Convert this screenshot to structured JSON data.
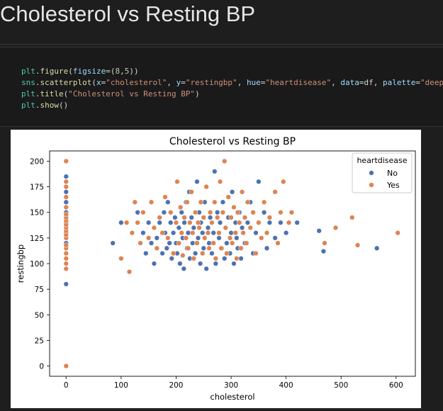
{
  "notebook": {
    "heading": "Cholesterol vs Resting BP",
    "code_lines": [
      [
        {
          "c": "t-mod",
          "t": "plt"
        },
        {
          "c": "t-p",
          "t": "."
        },
        {
          "c": "t-fn",
          "t": "figure"
        },
        {
          "c": "t-p",
          "t": "("
        },
        {
          "c": "t-arg",
          "t": "figsize"
        },
        {
          "c": "t-p",
          "t": "=("
        },
        {
          "c": "t-num",
          "t": "8"
        },
        {
          "c": "t-p",
          "t": ","
        },
        {
          "c": "t-num",
          "t": "5"
        },
        {
          "c": "t-p",
          "t": "))"
        }
      ],
      [
        {
          "c": "t-mod",
          "t": "sns"
        },
        {
          "c": "t-p",
          "t": "."
        },
        {
          "c": "t-fn",
          "t": "scatterplot"
        },
        {
          "c": "t-p",
          "t": "("
        },
        {
          "c": "t-arg",
          "t": "x"
        },
        {
          "c": "t-p",
          "t": "="
        },
        {
          "c": "t-str",
          "t": "\"cholesterol\""
        },
        {
          "c": "t-p",
          "t": ", "
        },
        {
          "c": "t-arg",
          "t": "y"
        },
        {
          "c": "t-p",
          "t": "="
        },
        {
          "c": "t-str",
          "t": "\"restingbp\""
        },
        {
          "c": "t-p",
          "t": ", "
        },
        {
          "c": "t-arg",
          "t": "hue"
        },
        {
          "c": "t-p",
          "t": "="
        },
        {
          "c": "t-str",
          "t": "\"heartdisease\""
        },
        {
          "c": "t-p",
          "t": ", "
        },
        {
          "c": "t-arg",
          "t": "data"
        },
        {
          "c": "t-p",
          "t": "=df, "
        },
        {
          "c": "t-arg",
          "t": "palette"
        },
        {
          "c": "t-p",
          "t": "="
        },
        {
          "c": "t-str",
          "t": "\"deep\""
        },
        {
          "c": "t-p",
          "t": ")"
        }
      ],
      [
        {
          "c": "t-mod",
          "t": "plt"
        },
        {
          "c": "t-p",
          "t": "."
        },
        {
          "c": "t-fn",
          "t": "title"
        },
        {
          "c": "t-p",
          "t": "("
        },
        {
          "c": "t-str",
          "t": "\"Cholesterol vs Resting BP\""
        },
        {
          "c": "t-p",
          "t": ")"
        }
      ],
      [
        {
          "c": "t-mod",
          "t": "plt"
        },
        {
          "c": "t-p",
          "t": "."
        },
        {
          "c": "t-fn",
          "t": "show"
        },
        {
          "c": "t-p",
          "t": "()"
        }
      ]
    ]
  },
  "chart_data": {
    "type": "scatter",
    "title": "Cholesterol vs Resting BP",
    "xlabel": "cholesterol",
    "ylabel": "restingbp",
    "xlim": [
      -30,
      635
    ],
    "ylim": [
      -10,
      210
    ],
    "xticks": [
      0,
      100,
      200,
      300,
      400,
      500,
      600
    ],
    "yticks": [
      0,
      25,
      50,
      75,
      100,
      125,
      150,
      175,
      200
    ],
    "grid": false,
    "legend": {
      "title": "heartdisease",
      "placement": "top-right"
    },
    "series": [
      {
        "name": "No",
        "color": "#4c72b0",
        "points": [
          [
            0,
            80
          ],
          [
            0,
            120
          ],
          [
            0,
            130
          ],
          [
            0,
            140
          ],
          [
            0,
            150
          ],
          [
            0,
            160
          ],
          [
            0,
            170
          ],
          [
            0,
            185
          ],
          [
            85,
            120
          ],
          [
            100,
            140
          ],
          [
            130,
            150
          ],
          [
            140,
            130
          ],
          [
            145,
            110
          ],
          [
            150,
            140
          ],
          [
            155,
            120
          ],
          [
            160,
            100
          ],
          [
            165,
            125
          ],
          [
            170,
            140
          ],
          [
            175,
            110
          ],
          [
            178,
            150
          ],
          [
            180,
            130
          ],
          [
            183,
            115
          ],
          [
            185,
            160
          ],
          [
            188,
            120
          ],
          [
            190,
            140
          ],
          [
            192,
            105
          ],
          [
            195,
            130
          ],
          [
            198,
            145
          ],
          [
            200,
            120
          ],
          [
            202,
            110
          ],
          [
            205,
            135
          ],
          [
            207,
            100
          ],
          [
            210,
            150
          ],
          [
            212,
            125
          ],
          [
            214,
            95
          ],
          [
            215,
            140
          ],
          [
            218,
            160
          ],
          [
            220,
            115
          ],
          [
            222,
            130
          ],
          [
            224,
            170
          ],
          [
            225,
            105
          ],
          [
            228,
            145
          ],
          [
            230,
            120
          ],
          [
            232,
            135
          ],
          [
            235,
            110
          ],
          [
            238,
            180
          ],
          [
            240,
            125
          ],
          [
            242,
            150
          ],
          [
            244,
            100
          ],
          [
            245,
            140
          ],
          [
            248,
            130
          ],
          [
            250,
            115
          ],
          [
            252,
            160
          ],
          [
            255,
            95
          ],
          [
            258,
            135
          ],
          [
            260,
            120
          ],
          [
            262,
            145
          ],
          [
            265,
            110
          ],
          [
            268,
            130
          ],
          [
            270,
            190
          ],
          [
            272,
            100
          ],
          [
            275,
            150
          ],
          [
            278,
            125
          ],
          [
            280,
            140
          ],
          [
            283,
            115
          ],
          [
            285,
            160
          ],
          [
            288,
            105
          ],
          [
            290,
            135
          ],
          [
            292,
            120
          ],
          [
            295,
            145
          ],
          [
            298,
            110
          ],
          [
            300,
            130
          ],
          [
            302,
            170
          ],
          [
            305,
            100
          ],
          [
            308,
            140
          ],
          [
            310,
            125
          ],
          [
            312,
            115
          ],
          [
            315,
            150
          ],
          [
            318,
            105
          ],
          [
            320,
            135
          ],
          [
            325,
            120
          ],
          [
            330,
            140
          ],
          [
            335,
            160
          ],
          [
            340,
            110
          ],
          [
            345,
            130
          ],
          [
            350,
            180
          ],
          [
            355,
            125
          ],
          [
            360,
            150
          ],
          [
            365,
            115
          ],
          [
            370,
            140
          ],
          [
            380,
            125
          ],
          [
            390,
            140
          ],
          [
            400,
            130
          ],
          [
            410,
            150
          ],
          [
            420,
            140
          ],
          [
            460,
            132
          ],
          [
            468,
            112
          ],
          [
            565,
            115
          ]
        ]
      },
      {
        "name": "Yes",
        "color": "#dd8452",
        "points": [
          [
            0,
            0
          ],
          [
            0,
            95
          ],
          [
            0,
            100
          ],
          [
            0,
            105
          ],
          [
            0,
            110
          ],
          [
            0,
            115
          ],
          [
            0,
            118
          ],
          [
            0,
            125
          ],
          [
            0,
            128
          ],
          [
            0,
            132
          ],
          [
            0,
            135
          ],
          [
            0,
            138
          ],
          [
            0,
            142
          ],
          [
            0,
            145
          ],
          [
            0,
            148
          ],
          [
            0,
            155
          ],
          [
            0,
            165
          ],
          [
            0,
            175
          ],
          [
            0,
            180
          ],
          [
            0,
            200
          ],
          [
            100,
            105
          ],
          [
            110,
            140
          ],
          [
            115,
            92
          ],
          [
            120,
            130
          ],
          [
            125,
            160
          ],
          [
            130,
            140
          ],
          [
            135,
            120
          ],
          [
            140,
            150
          ],
          [
            150,
            125
          ],
          [
            155,
            160
          ],
          [
            160,
            135
          ],
          [
            165,
            115
          ],
          [
            170,
            145
          ],
          [
            175,
            130
          ],
          [
            180,
            165
          ],
          [
            185,
            125
          ],
          [
            190,
            150
          ],
          [
            195,
            110
          ],
          [
            200,
            140
          ],
          [
            202,
            180
          ],
          [
            205,
            120
          ],
          [
            208,
            155
          ],
          [
            210,
            130
          ],
          [
            212,
            108
          ],
          [
            215,
            145
          ],
          [
            218,
            125
          ],
          [
            220,
            160
          ],
          [
            222,
            115
          ],
          [
            225,
            140
          ],
          [
            228,
            170
          ],
          [
            230,
            130
          ],
          [
            232,
            105
          ],
          [
            235,
            150
          ],
          [
            238,
            120
          ],
          [
            240,
            140
          ],
          [
            242,
            135
          ],
          [
            245,
            160
          ],
          [
            248,
            110
          ],
          [
            250,
            145
          ],
          [
            252,
            125
          ],
          [
            255,
            175
          ],
          [
            258,
            130
          ],
          [
            260,
            115
          ],
          [
            262,
            150
          ],
          [
            265,
            140
          ],
          [
            268,
            120
          ],
          [
            270,
            160
          ],
          [
            272,
            105
          ],
          [
            275,
            145
          ],
          [
            278,
            130
          ],
          [
            280,
            180
          ],
          [
            282,
            115
          ],
          [
            285,
            150
          ],
          [
            288,
            200
          ],
          [
            290,
            135
          ],
          [
            292,
            110
          ],
          [
            295,
            165
          ],
          [
            298,
            125
          ],
          [
            300,
            145
          ],
          [
            302,
            120
          ],
          [
            305,
            155
          ],
          [
            308,
            130
          ],
          [
            310,
            105
          ],
          [
            312,
            150
          ],
          [
            315,
            140
          ],
          [
            318,
            115
          ],
          [
            320,
            170
          ],
          [
            322,
            130
          ],
          [
            325,
            145
          ],
          [
            328,
            120
          ],
          [
            330,
            160
          ],
          [
            335,
            135
          ],
          [
            340,
            150
          ],
          [
            345,
            110
          ],
          [
            350,
            140
          ],
          [
            355,
            125
          ],
          [
            360,
            160
          ],
          [
            365,
            130
          ],
          [
            370,
            145
          ],
          [
            380,
            170
          ],
          [
            385,
            120
          ],
          [
            390,
            150
          ],
          [
            395,
            180
          ],
          [
            405,
            140
          ],
          [
            410,
            150
          ],
          [
            470,
            120
          ],
          [
            490,
            135
          ],
          [
            520,
            145
          ],
          [
            530,
            118
          ],
          [
            603,
            130
          ]
        ]
      }
    ]
  }
}
